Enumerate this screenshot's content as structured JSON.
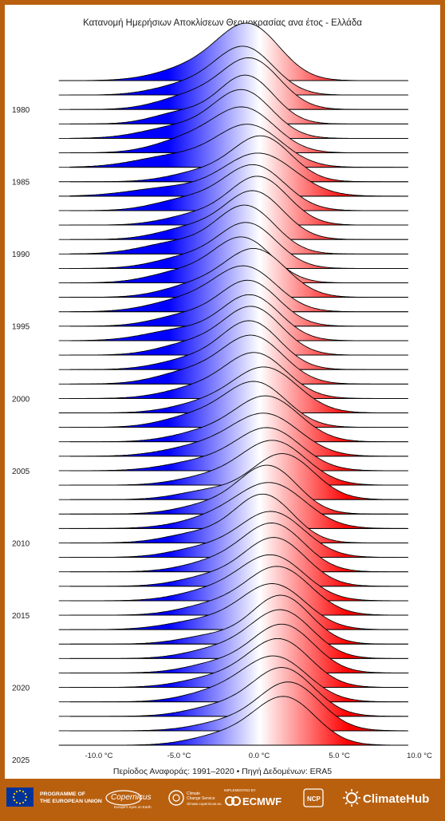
{
  "chart_data": {
    "type": "ridgeline",
    "title": "Κατανομή Ημερήσιων Αποκλίσεων Θερμοκρασίας ανα έτος - Ελλάδα",
    "subtitle": "Περίοδος Αναφοράς: 1991–2020 • Πηγή Δεδομένων: ERA5",
    "x_unit": "°C",
    "xlim": [
      -12.5,
      10
    ],
    "x_ticks": [
      -10,
      -5,
      0,
      5,
      10
    ],
    "x_tick_labels": [
      "-10.0 °C",
      "-5.0 °C",
      "0.0 °C",
      "5.0 °C",
      "10.0 °C"
    ],
    "y_tick_labels": [
      "1980",
      "1985",
      "1990",
      "1995",
      "2000",
      "2005",
      "2010",
      "2015",
      "2020",
      "2025"
    ],
    "colormap": [
      "#0000ff",
      "#ffffff",
      "#ff0000"
    ],
    "density_model": "each year's curve = main normal peak (mean, sd) + broad cold shoulder (cold_mean, cold_sd, cold_weight); peak = relative peak height",
    "years": [
      {
        "year": 1979,
        "mean": -0.6,
        "sd": 1.9,
        "cold_mean": -4.0,
        "cold_sd": 2.2,
        "cold_weight": 0.25,
        "peak": 1.0,
        "xmin": -11.8,
        "xmax": 9.3
      },
      {
        "year": 1980,
        "mean": -0.9,
        "sd": 1.8,
        "cold_mean": -4.5,
        "cold_sd": 2.0,
        "cold_weight": 0.22,
        "peak": 0.85,
        "xmin": -11.8,
        "xmax": 9.3
      },
      {
        "year": 1981,
        "mean": -0.5,
        "sd": 1.8,
        "cold_mean": -4.2,
        "cold_sd": 2.0,
        "cold_weight": 0.28,
        "peak": 0.9,
        "xmin": -11.8,
        "xmax": 9.3
      },
      {
        "year": 1982,
        "mean": -0.8,
        "sd": 1.7,
        "cold_mean": -4.8,
        "cold_sd": 1.8,
        "cold_weight": 0.24,
        "peak": 0.85,
        "xmin": -11.8,
        "xmax": 9.3
      },
      {
        "year": 1983,
        "mean": -1.0,
        "sd": 1.8,
        "cold_mean": -5.0,
        "cold_sd": 2.2,
        "cold_weight": 0.25,
        "peak": 0.85,
        "xmin": -11.8,
        "xmax": 9.3
      },
      {
        "year": 1984,
        "mean": -0.9,
        "sd": 1.9,
        "cold_mean": -4.5,
        "cold_sd": 2.0,
        "cold_weight": 0.3,
        "peak": 0.8,
        "xmin": -11.8,
        "xmax": 9.3
      },
      {
        "year": 1985,
        "mean": -0.6,
        "sd": 2.0,
        "cold_mean": -5.2,
        "cold_sd": 2.4,
        "cold_weight": 0.28,
        "peak": 0.75,
        "xmin": -11.8,
        "xmax": 9.3
      },
      {
        "year": 1986,
        "mean": 0.2,
        "sd": 1.8,
        "cold_mean": -3.5,
        "cold_sd": 2.0,
        "cold_weight": 0.22,
        "peak": 0.8,
        "xmin": -11.8,
        "xmax": 9.3
      },
      {
        "year": 1987,
        "mean": 0.0,
        "sd": 2.2,
        "cold_mean": -5.5,
        "cold_sd": 2.5,
        "cold_weight": 0.2,
        "peak": 0.75,
        "xmin": -11.8,
        "xmax": 9.3
      },
      {
        "year": 1988,
        "mean": -0.3,
        "sd": 1.9,
        "cold_mean": -4.5,
        "cold_sd": 2.0,
        "cold_weight": 0.25,
        "peak": 0.8,
        "xmin": -11.8,
        "xmax": 9.3
      },
      {
        "year": 1989,
        "mean": 0.0,
        "sd": 1.8,
        "cold_mean": -3.8,
        "cold_sd": 2.0,
        "cold_weight": 0.22,
        "peak": 0.85,
        "xmin": -11.8,
        "xmax": 9.3
      },
      {
        "year": 1990,
        "mean": -0.3,
        "sd": 1.8,
        "cold_mean": -4.2,
        "cold_sd": 2.0,
        "cold_weight": 0.25,
        "peak": 0.85,
        "xmin": -11.8,
        "xmax": 9.3
      },
      {
        "year": 1991,
        "mean": -0.8,
        "sd": 1.8,
        "cold_mean": -5.0,
        "cold_sd": 2.2,
        "cold_weight": 0.25,
        "peak": 0.85,
        "xmin": -11.8,
        "xmax": 9.3
      },
      {
        "year": 1992,
        "mean": -0.7,
        "sd": 1.8,
        "cold_mean": -4.5,
        "cold_sd": 2.0,
        "cold_weight": 0.25,
        "peak": 0.8,
        "xmin": -11.8,
        "xmax": 9.3
      },
      {
        "year": 1993,
        "mean": -1.0,
        "sd": 1.8,
        "cold_mean": -4.8,
        "cold_sd": 2.0,
        "cold_weight": 0.25,
        "peak": 0.8,
        "xmin": -11.8,
        "xmax": 9.3
      },
      {
        "year": 1994,
        "mean": -0.2,
        "sd": 1.9,
        "cold_mean": -4.0,
        "cold_sd": 2.0,
        "cold_weight": 0.25,
        "peak": 0.85,
        "xmin": -11.8,
        "xmax": 9.3
      },
      {
        "year": 1995,
        "mean": -0.8,
        "sd": 1.9,
        "cold_mean": -4.5,
        "cold_sd": 2.2,
        "cold_weight": 0.28,
        "peak": 0.8,
        "xmin": -11.8,
        "xmax": 9.3
      },
      {
        "year": 1996,
        "mean": -0.6,
        "sd": 1.8,
        "cold_mean": -4.5,
        "cold_sd": 2.0,
        "cold_weight": 0.25,
        "peak": 0.8,
        "xmin": -11.8,
        "xmax": 9.3
      },
      {
        "year": 1997,
        "mean": -0.5,
        "sd": 1.8,
        "cold_mean": -4.8,
        "cold_sd": 2.2,
        "cold_weight": 0.25,
        "peak": 0.8,
        "xmin": -11.8,
        "xmax": 9.3
      },
      {
        "year": 1998,
        "mean": -0.4,
        "sd": 1.8,
        "cold_mean": -4.2,
        "cold_sd": 2.0,
        "cold_weight": 0.25,
        "peak": 0.85,
        "xmin": -11.8,
        "xmax": 9.3
      },
      {
        "year": 1999,
        "mean": -0.5,
        "sd": 1.8,
        "cold_mean": -4.2,
        "cold_sd": 2.0,
        "cold_weight": 0.22,
        "peak": 0.85,
        "xmin": -11.8,
        "xmax": 9.3
      },
      {
        "year": 2000,
        "mean": -0.4,
        "sd": 1.9,
        "cold_mean": -4.4,
        "cold_sd": 2.0,
        "cold_weight": 0.25,
        "peak": 0.85,
        "xmin": -11.8,
        "xmax": 9.3
      },
      {
        "year": 2001,
        "mean": -0.2,
        "sd": 1.9,
        "cold_mean": -4.0,
        "cold_sd": 2.0,
        "cold_weight": 0.22,
        "peak": 0.8,
        "xmin": -11.8,
        "xmax": 9.3
      },
      {
        "year": 2002,
        "mean": 0.4,
        "sd": 2.0,
        "cold_mean": -3.5,
        "cold_sd": 2.0,
        "cold_weight": 0.2,
        "peak": 0.8,
        "xmin": -11.8,
        "xmax": 9.3
      },
      {
        "year": 2003,
        "mean": -0.2,
        "sd": 1.9,
        "cold_mean": -4.0,
        "cold_sd": 2.0,
        "cold_weight": 0.25,
        "peak": 0.8,
        "xmin": -11.8,
        "xmax": 9.3
      },
      {
        "year": 2004,
        "mean": 0.5,
        "sd": 2.0,
        "cold_mean": -3.5,
        "cold_sd": 2.0,
        "cold_weight": 0.2,
        "peak": 0.8,
        "xmin": -11.8,
        "xmax": 9.3
      },
      {
        "year": 2005,
        "mean": 0.4,
        "sd": 2.1,
        "cold_mean": -3.8,
        "cold_sd": 2.2,
        "cold_weight": 0.22,
        "peak": 0.75,
        "xmin": -11.8,
        "xmax": 9.3
      },
      {
        "year": 2006,
        "mean": 0.6,
        "sd": 2.0,
        "cold_mean": -3.6,
        "cold_sd": 2.2,
        "cold_weight": 0.22,
        "peak": 0.75,
        "xmin": -11.8,
        "xmax": 9.3
      },
      {
        "year": 2007,
        "mean": 0.9,
        "sd": 2.0,
        "cold_mean": -3.2,
        "cold_sd": 2.0,
        "cold_weight": 0.18,
        "peak": 0.78,
        "xmin": -11.8,
        "xmax": 9.3
      },
      {
        "year": 2008,
        "mean": 1.5,
        "sd": 1.9,
        "cold_mean": -3.0,
        "cold_sd": 2.0,
        "cold_weight": 0.2,
        "peak": 0.8,
        "xmin": -11.8,
        "xmax": 9.3
      },
      {
        "year": 2009,
        "mean": 0.6,
        "sd": 1.8,
        "cold_mean": -3.0,
        "cold_sd": 2.0,
        "cold_weight": 0.2,
        "peak": 0.85,
        "xmin": -11.8,
        "xmax": 9.3
      },
      {
        "year": 2010,
        "mean": 0.8,
        "sd": 2.1,
        "cold_mean": -2.8,
        "cold_sd": 2.2,
        "cold_weight": 0.22,
        "peak": 0.8,
        "xmin": -11.8,
        "xmax": 9.3
      },
      {
        "year": 2011,
        "mean": 0.3,
        "sd": 1.8,
        "cold_mean": -3.8,
        "cold_sd": 2.0,
        "cold_weight": 0.2,
        "peak": 0.85,
        "xmin": -11.8,
        "xmax": 9.3
      },
      {
        "year": 2012,
        "mean": 0.8,
        "sd": 2.0,
        "cold_mean": -3.5,
        "cold_sd": 2.0,
        "cold_weight": 0.2,
        "peak": 0.8,
        "xmin": -11.8,
        "xmax": 9.3
      },
      {
        "year": 2013,
        "mean": 0.9,
        "sd": 1.9,
        "cold_mean": -2.8,
        "cold_sd": 2.0,
        "cold_weight": 0.2,
        "peak": 0.85,
        "xmin": -11.8,
        "xmax": 9.3
      },
      {
        "year": 2014,
        "mean": 1.0,
        "sd": 1.9,
        "cold_mean": -3.0,
        "cold_sd": 2.0,
        "cold_weight": 0.2,
        "peak": 0.85,
        "xmin": -11.8,
        "xmax": 9.3
      },
      {
        "year": 2015,
        "mean": 0.8,
        "sd": 2.0,
        "cold_mean": -3.2,
        "cold_sd": 2.0,
        "cold_weight": 0.2,
        "peak": 0.8,
        "xmin": -11.8,
        "xmax": 9.3
      },
      {
        "year": 2016,
        "mean": 1.2,
        "sd": 2.0,
        "cold_mean": -3.0,
        "cold_sd": 2.0,
        "cold_weight": 0.2,
        "peak": 0.85,
        "xmin": -11.8,
        "xmax": 9.3
      },
      {
        "year": 2017,
        "mean": 0.9,
        "sd": 2.0,
        "cold_mean": -3.5,
        "cold_sd": 2.2,
        "cold_weight": 0.2,
        "peak": 0.8,
        "xmin": -11.8,
        "xmax": 9.3
      },
      {
        "year": 2018,
        "mean": 1.4,
        "sd": 1.8,
        "cold_mean": -2.8,
        "cold_sd": 2.0,
        "cold_weight": 0.18,
        "peak": 0.85,
        "xmin": -11.8,
        "xmax": 9.3
      },
      {
        "year": 2019,
        "mean": 1.4,
        "sd": 1.9,
        "cold_mean": -2.5,
        "cold_sd": 2.0,
        "cold_weight": 0.2,
        "peak": 0.85,
        "xmin": -11.8,
        "xmax": 9.3
      },
      {
        "year": 2020,
        "mean": 1.5,
        "sd": 1.9,
        "cold_mean": -2.5,
        "cold_sd": 2.0,
        "cold_weight": 0.2,
        "peak": 0.85,
        "xmin": -11.8,
        "xmax": 9.3
      },
      {
        "year": 2021,
        "mean": 1.3,
        "sd": 1.9,
        "cold_mean": -2.5,
        "cold_sd": 2.2,
        "cold_weight": 0.22,
        "peak": 0.85,
        "xmin": -11.8,
        "xmax": 9.3
      },
      {
        "year": 2022,
        "mean": 1.0,
        "sd": 2.0,
        "cold_mean": -2.8,
        "cold_sd": 2.0,
        "cold_weight": 0.2,
        "peak": 0.8,
        "xmin": -11.8,
        "xmax": 9.3
      },
      {
        "year": 2023,
        "mean": 1.5,
        "sd": 1.9,
        "cold_mean": -2.5,
        "cold_sd": 2.0,
        "cold_weight": 0.2,
        "peak": 0.85,
        "xmin": -11.8,
        "xmax": 9.3
      },
      {
        "year": 2024,
        "mean": 1.9,
        "sd": 1.9,
        "cold_mean": -2.0,
        "cold_sd": 2.0,
        "cold_weight": 0.18,
        "peak": 0.85,
        "xmin": -11.8,
        "xmax": 9.3
      },
      {
        "year": 2025,
        "mean": 1.6,
        "sd": 1.9,
        "cold_mean": -2.3,
        "cold_sd": 2.0,
        "cold_weight": 0.2,
        "peak": 0.85,
        "xmin": -11.8,
        "xmax": 9.3
      }
    ]
  },
  "footer": {
    "programme_line1": "PROGRAMME OF",
    "programme_line2": "THE EUROPEAN UNION",
    "copernicus": "Copernicus",
    "copernicus_sub": "Europe's eyes on Earth",
    "c3s_line1": "Climate",
    "c3s_line2": "Change Service",
    "c3s_url": "climate.copernicus.eu",
    "implemented_by": "IMPLEMENTED BY",
    "ecmwf": "ECMWF",
    "ncp": "NCP",
    "climatehub": "ClimateHub"
  }
}
